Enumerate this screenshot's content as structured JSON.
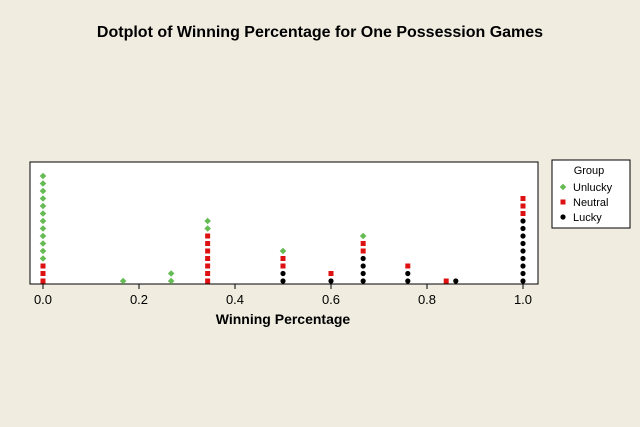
{
  "chart_data": {
    "type": "scatter",
    "title": "Dotplot of Winning Percentage for One Possession Games",
    "xlabel": "Winning Percentage",
    "ylabel": "",
    "xlim": [
      -0.04,
      1.04
    ],
    "xticks": [
      0.0,
      0.2,
      0.4,
      0.6,
      0.8,
      1.0
    ],
    "xtick_labels": [
      "0.0",
      "0.2",
      "0.4",
      "0.6",
      "0.8",
      "1.0"
    ],
    "grid": false,
    "legend_title": "Group",
    "legend_position": "right",
    "series": [
      {
        "name": "Unlucky",
        "marker": "diamond",
        "color": "#66bb55"
      },
      {
        "name": "Neutral",
        "marker": "square",
        "color": "#dd1111"
      },
      {
        "name": "Lucky",
        "marker": "circle",
        "color": "#000000"
      }
    ],
    "stacks": [
      {
        "x": 0.0,
        "counts": {
          "Lucky": 0,
          "Neutral": 3,
          "Unlucky": 12
        }
      },
      {
        "x": 0.167,
        "counts": {
          "Lucky": 0,
          "Neutral": 0,
          "Unlucky": 1
        }
      },
      {
        "x": 0.267,
        "counts": {
          "Lucky": 0,
          "Neutral": 0,
          "Unlucky": 2
        }
      },
      {
        "x": 0.343,
        "counts": {
          "Lucky": 0,
          "Neutral": 7,
          "Unlucky": 2
        }
      },
      {
        "x": 0.5,
        "counts": {
          "Lucky": 2,
          "Neutral": 2,
          "Unlucky": 1
        }
      },
      {
        "x": 0.6,
        "counts": {
          "Lucky": 1,
          "Neutral": 1,
          "Unlucky": 0
        }
      },
      {
        "x": 0.667,
        "counts": {
          "Lucky": 4,
          "Neutral": 2,
          "Unlucky": 1
        }
      },
      {
        "x": 0.76,
        "counts": {
          "Lucky": 2,
          "Neutral": 1,
          "Unlucky": 0
        }
      },
      {
        "x": 0.84,
        "counts": {
          "Lucky": 0,
          "Neutral": 1,
          "Unlucky": 0
        }
      },
      {
        "x": 0.86,
        "counts": {
          "Lucky": 1,
          "Neutral": 0,
          "Unlucky": 0
        }
      },
      {
        "x": 1.0,
        "counts": {
          "Lucky": 9,
          "Neutral": 3,
          "Unlucky": 0
        }
      }
    ]
  }
}
